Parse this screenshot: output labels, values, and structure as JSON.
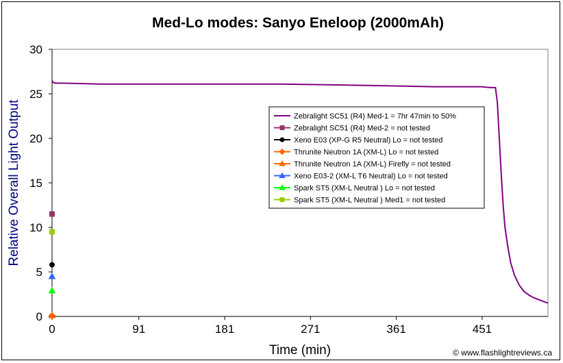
{
  "chart_data": {
    "type": "line",
    "title": "Med-Lo modes: Sanyo Eneloop (2000mAh)",
    "xlabel": "Time (min)",
    "ylabel": "Relative Overall Light Output",
    "xlim": [
      0,
      520
    ],
    "ylim": [
      0,
      30
    ],
    "x_ticks": [
      "0",
      "91",
      "181",
      "271",
      "361",
      "451"
    ],
    "y_ticks": [
      "0",
      "5",
      "10",
      "15",
      "20",
      "25",
      "30"
    ],
    "grid": false,
    "legend_position": "right",
    "credit": "© www.flashlightreviews.ca",
    "series": [
      {
        "name": "Zebralight SC51 (R4) Med-1 = 7hr 47min to 50%",
        "color": "#800080",
        "marker": "none",
        "x": [
          0,
          1,
          3,
          10,
          50,
          100,
          200,
          240,
          300,
          350,
          400,
          430,
          450,
          460,
          465,
          467,
          469,
          471,
          473,
          475,
          478,
          481,
          485,
          490,
          495,
          500,
          505,
          510,
          515,
          520
        ],
        "y": [
          26.5,
          26.3,
          26.2,
          26.2,
          26.1,
          26.1,
          26.1,
          26.1,
          26.0,
          25.9,
          25.8,
          25.8,
          25.8,
          25.7,
          25.7,
          24.0,
          20.0,
          16.0,
          12.5,
          10.0,
          7.8,
          6.0,
          4.6,
          3.5,
          2.8,
          2.4,
          2.1,
          1.9,
          1.7,
          1.5
        ]
      },
      {
        "name": "Zebralight SC51 (R4) Med-2 = not tested",
        "color": "#993366",
        "marker": "square",
        "x": [
          0
        ],
        "y": [
          11.5
        ]
      },
      {
        "name": "Xeno E03 (XP-G R5 Neutral) Lo = not tested",
        "color": "#000000",
        "marker": "circle",
        "x": [
          0
        ],
        "y": [
          5.8
        ]
      },
      {
        "name": "Thrunite Neutron 1A (XM-L) Lo = not tested",
        "color": "#FF6600",
        "marker": "diamond",
        "x": [
          0
        ],
        "y": [
          0.1
        ]
      },
      {
        "name": "Thrunite Neutron 1A (XM-L) Firefly = not tested",
        "color": "#FF6600",
        "marker": "triangle",
        "x": [
          0
        ],
        "y": [
          0.1
        ]
      },
      {
        "name": "Xeno E03-2 (XM-L T6 Neutral) Lo = not tested",
        "color": "#3366FF",
        "marker": "triangle",
        "x": [
          0
        ],
        "y": [
          4.5
        ]
      },
      {
        "name": "Spark ST5 (XM-L Neutral ) Lo = not tested",
        "color": "#00FF00",
        "marker": "triangle",
        "x": [
          0
        ],
        "y": [
          2.9
        ]
      },
      {
        "name": "Spark ST5 (XM-L Neutral ) Med1 = not tested",
        "color": "#99CC00",
        "marker": "square",
        "x": [
          0
        ],
        "y": [
          9.5
        ]
      }
    ]
  }
}
